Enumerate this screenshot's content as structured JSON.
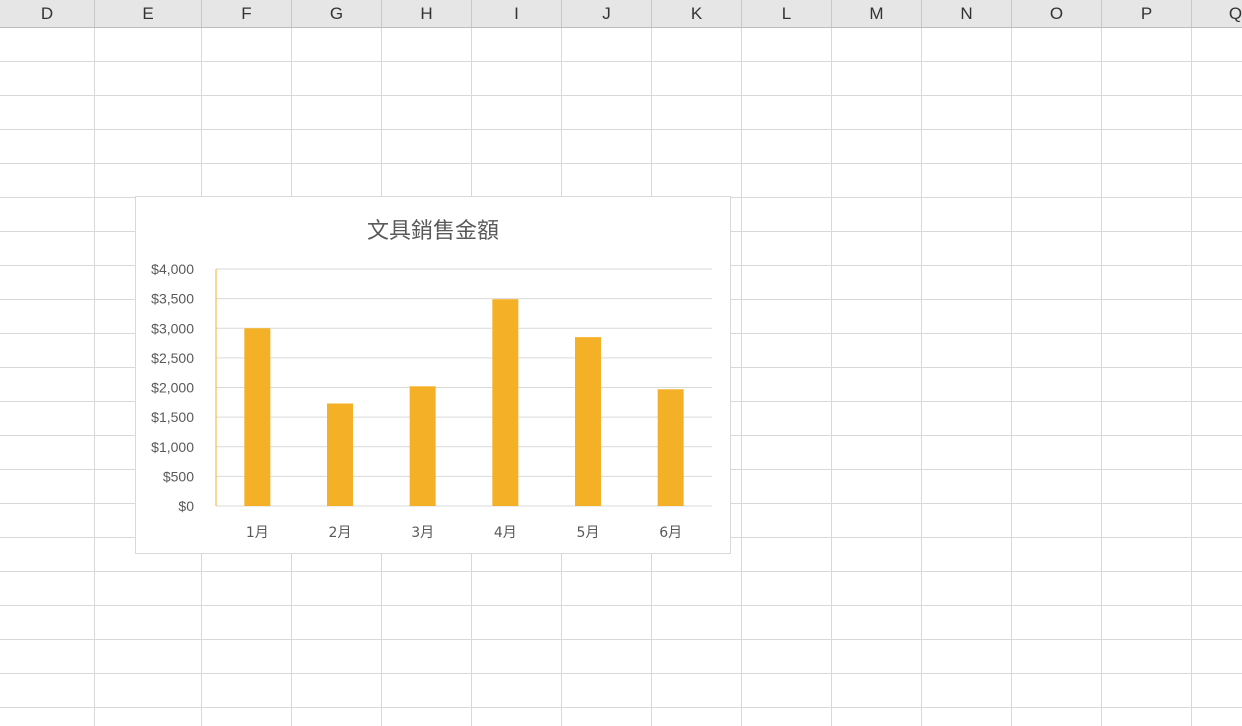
{
  "sheet": {
    "columns": [
      "D",
      "E",
      "F",
      "G",
      "H",
      "I",
      "J",
      "K",
      "L",
      "M",
      "N",
      "O",
      "P",
      "Q"
    ]
  },
  "chart_data": {
    "type": "bar",
    "title": "文具銷售金額",
    "categories": [
      "1月",
      "2月",
      "3月",
      "4月",
      "5月",
      "6月"
    ],
    "values": [
      3000,
      1730,
      2020,
      3490,
      2850,
      1970
    ],
    "ylim": [
      0,
      4000
    ],
    "ytick_labels": [
      "$0",
      "$500",
      "$1,000",
      "$1,500",
      "$2,000",
      "$2,500",
      "$3,000",
      "$3,500",
      "$4,000"
    ],
    "xlabel": "",
    "ylabel": "",
    "bar_color": "#f4b127",
    "grid": true,
    "legend": "none"
  }
}
